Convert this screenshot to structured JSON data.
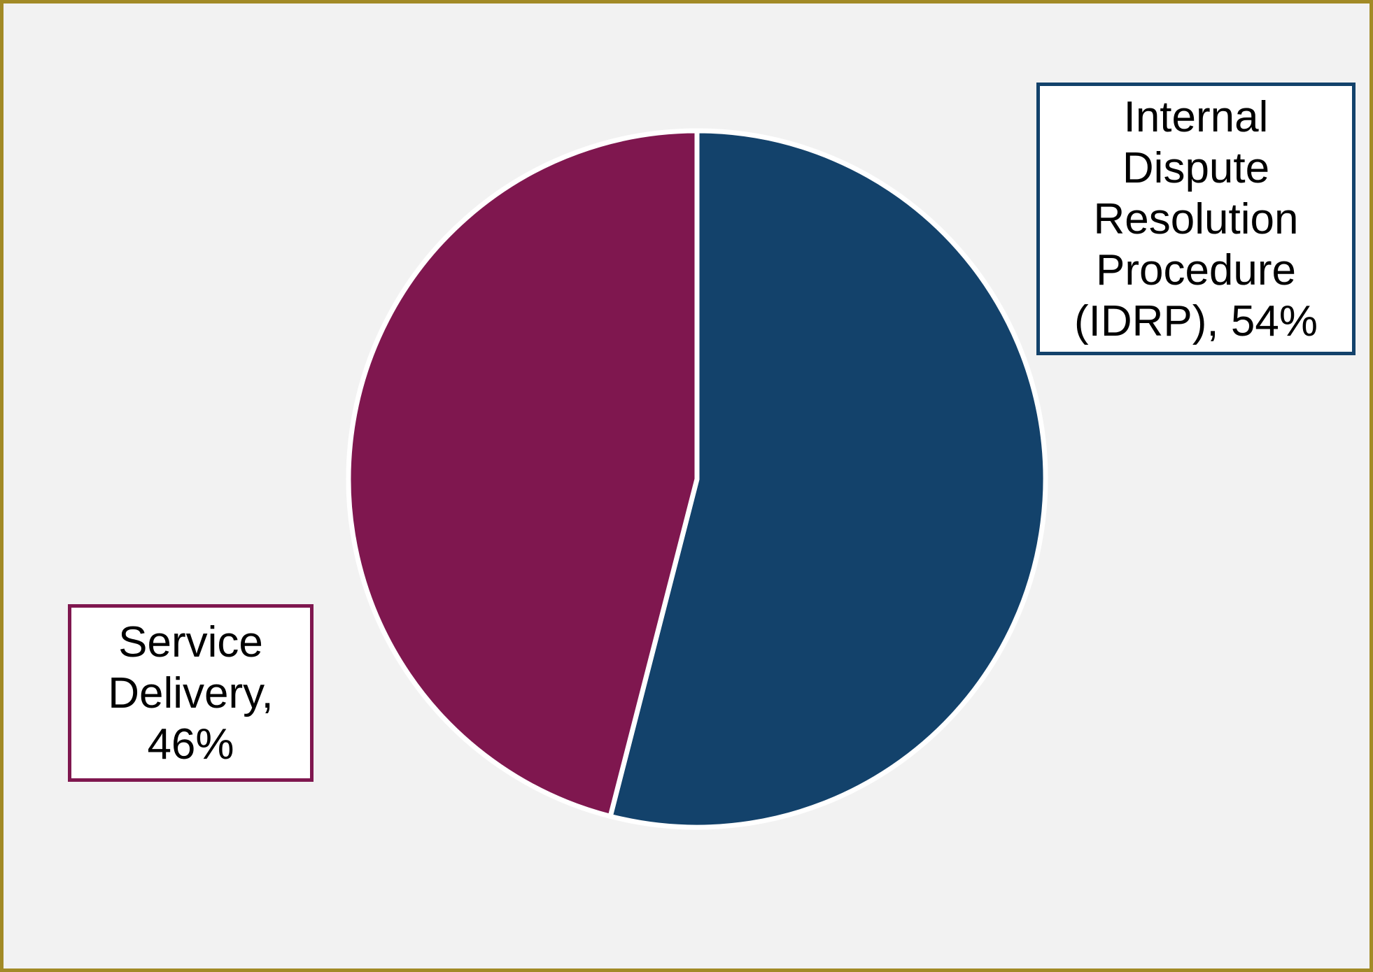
{
  "chart_data": {
    "type": "pie",
    "slices": [
      {
        "label_lines": [
          "Internal",
          "Dispute",
          "Resolution",
          "Procedure",
          "(IDRP), 54%"
        ],
        "category": "Internal Dispute Resolution Procedure (IDRP)",
        "value": 54,
        "color": "#13426B"
      },
      {
        "label_lines": [
          "Service",
          "Delivery,",
          "46%"
        ],
        "category": "Service Delivery",
        "value": 46,
        "color": "#7F174F"
      }
    ],
    "start_angle": "12 o'clock",
    "direction": "clockwise",
    "legend": "none",
    "data_labels": "boxed category name and percent"
  },
  "style": {
    "background_color": "#F2F2F2",
    "frame_color": "#A28A26",
    "slice_border_color": "#FFFFFF"
  }
}
